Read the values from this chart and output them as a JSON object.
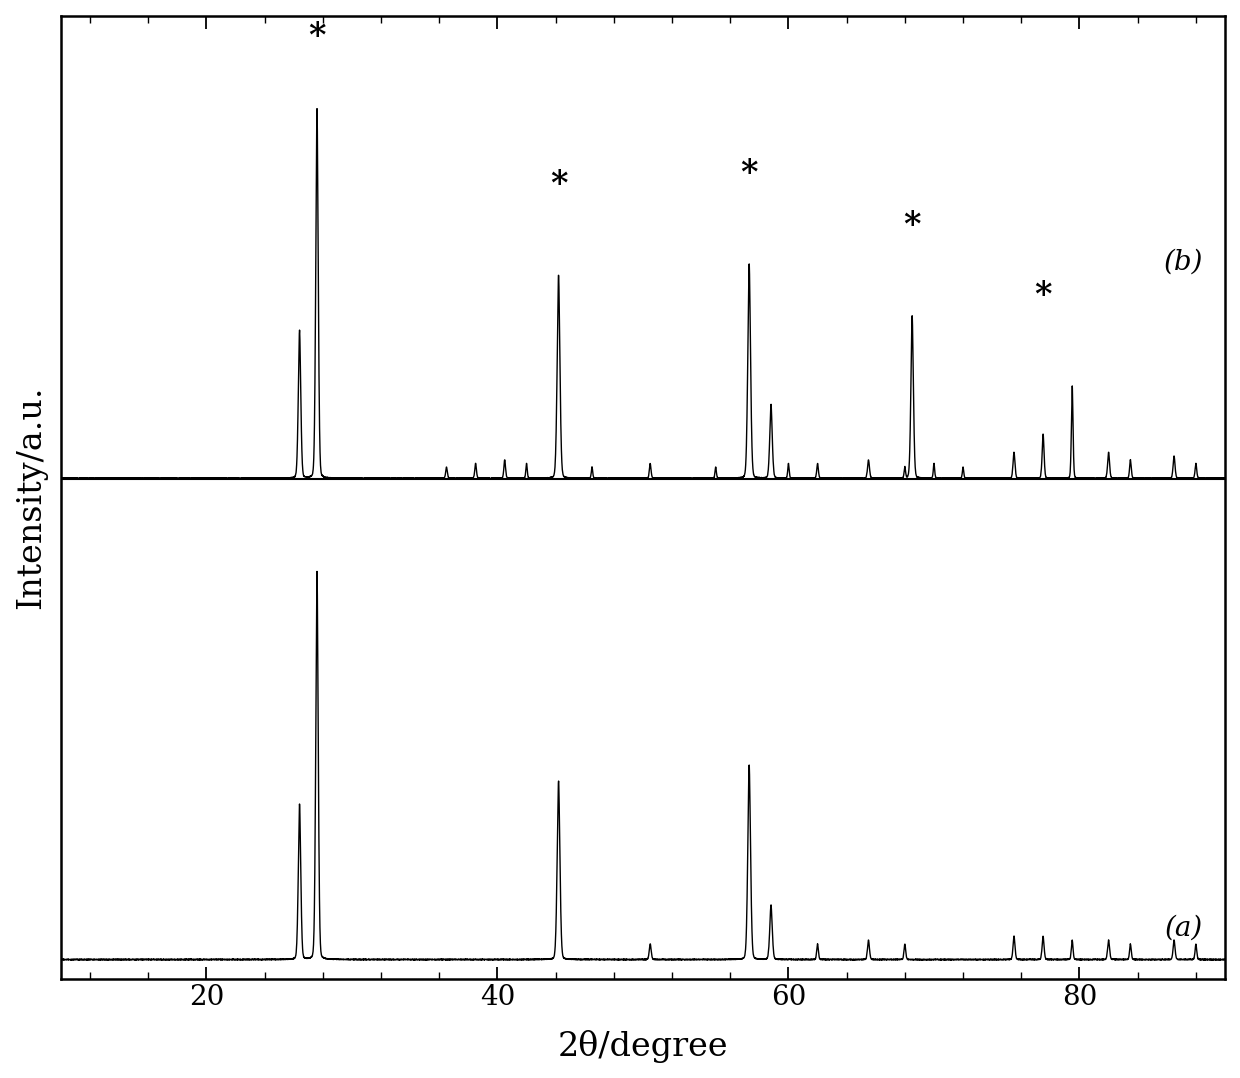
{
  "xlabel": "2θ/degree",
  "ylabel": "Intensity/a.u.",
  "xmin": 10,
  "xmax": 90,
  "label_a": "(a)",
  "label_b": "(b)",
  "background_color": "#ffffff",
  "line_color": "#000000",
  "tick_label_fontsize": 20,
  "axis_label_fontsize": 24,
  "peaks_a": [
    26.4,
    27.6,
    44.2,
    50.5,
    57.3,
    58.8,
    62.0,
    65.5,
    68.0,
    75.5,
    77.5,
    79.5,
    82.0,
    83.5,
    86.5,
    88.0
  ],
  "widths_a": [
    0.09,
    0.09,
    0.1,
    0.07,
    0.1,
    0.09,
    0.06,
    0.07,
    0.06,
    0.07,
    0.07,
    0.06,
    0.07,
    0.06,
    0.07,
    0.06
  ],
  "heights_a": [
    0.4,
    1.0,
    0.46,
    0.04,
    0.5,
    0.14,
    0.04,
    0.05,
    0.04,
    0.06,
    0.06,
    0.05,
    0.05,
    0.04,
    0.05,
    0.04
  ],
  "peaks_b": [
    26.4,
    27.6,
    36.5,
    38.5,
    40.5,
    42.0,
    44.2,
    46.5,
    50.5,
    55.0,
    57.3,
    58.8,
    60.0,
    62.0,
    65.5,
    68.0,
    68.5,
    70.0,
    72.0,
    75.5,
    77.5,
    79.5,
    82.0,
    83.5,
    86.5,
    88.0
  ],
  "widths_b": [
    0.09,
    0.09,
    0.06,
    0.06,
    0.06,
    0.05,
    0.1,
    0.05,
    0.06,
    0.05,
    0.1,
    0.09,
    0.05,
    0.06,
    0.07,
    0.05,
    0.09,
    0.05,
    0.05,
    0.07,
    0.07,
    0.06,
    0.07,
    0.06,
    0.07,
    0.06
  ],
  "heights_b": [
    0.4,
    1.0,
    0.03,
    0.04,
    0.05,
    0.04,
    0.55,
    0.03,
    0.04,
    0.03,
    0.58,
    0.2,
    0.04,
    0.04,
    0.05,
    0.03,
    0.44,
    0.04,
    0.03,
    0.07,
    0.12,
    0.25,
    0.07,
    0.05,
    0.06,
    0.04
  ],
  "noise_level": 0.004,
  "star_x": [
    27.6,
    44.2,
    57.3,
    68.5,
    77.5
  ],
  "xticks": [
    20,
    40,
    60,
    80
  ]
}
